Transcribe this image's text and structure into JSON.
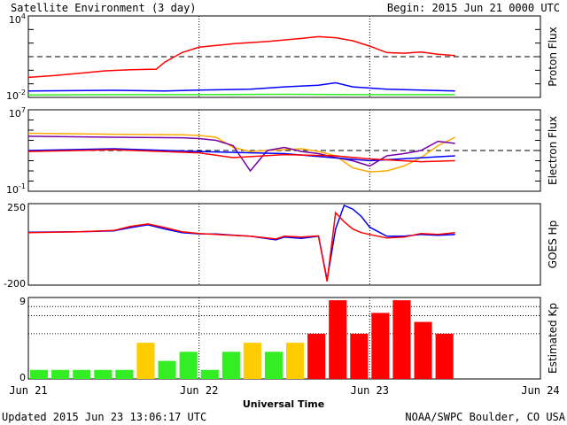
{
  "header": {
    "title": "Satellite Environment (3 day)",
    "begin": "Begin:  2015 Jun 21 0000 UTC"
  },
  "footer": {
    "updated": "Updated 2015 Jun 23 13:06:17 UTC",
    "credit": "NOAA/SWPC Boulder, CO USA"
  },
  "colors": {
    "red": "#ff0000",
    "blue": "#0000ff",
    "green": "#33ee22",
    "orange": "#ffaa00",
    "purple": "#7700aa",
    "yellow": "#ffcc00"
  },
  "chart_data": [
    {
      "id": "proton",
      "type": "line",
      "ylabel": "Proton Flux",
      "yscale": "log",
      "ylim": [
        0.01,
        10000
      ],
      "ytick_labels": [
        {
          "value": 10000,
          "base": "10",
          "exp": "4"
        },
        {
          "value": 0.01,
          "base": "10",
          "exp": "-2"
        }
      ],
      "threshold": 10,
      "series": [
        {
          "color": "red",
          "points": [
            [
              0,
              0.3
            ],
            [
              0.15,
              0.4
            ],
            [
              0.3,
              0.6
            ],
            [
              0.45,
              0.9
            ],
            [
              0.6,
              1.1
            ],
            [
              0.75,
              1.2
            ],
            [
              0.8,
              4
            ],
            [
              0.9,
              20
            ],
            [
              1.0,
              50
            ],
            [
              1.2,
              90
            ],
            [
              1.4,
              130
            ],
            [
              1.6,
              220
            ],
            [
              1.7,
              300
            ],
            [
              1.8,
              250
            ],
            [
              1.9,
              150
            ],
            [
              2.0,
              60
            ],
            [
              2.1,
              20
            ],
            [
              2.2,
              18
            ],
            [
              2.3,
              22
            ],
            [
              2.4,
              15
            ],
            [
              2.5,
              12
            ]
          ]
        },
        {
          "color": "blue",
          "points": [
            [
              0,
              0.03
            ],
            [
              0.5,
              0.033
            ],
            [
              0.8,
              0.03
            ],
            [
              1.0,
              0.035
            ],
            [
              1.3,
              0.04
            ],
            [
              1.5,
              0.06
            ],
            [
              1.7,
              0.08
            ],
            [
              1.8,
              0.12
            ],
            [
              1.9,
              0.06
            ],
            [
              2.1,
              0.04
            ],
            [
              2.5,
              0.03
            ]
          ]
        },
        {
          "color": "green",
          "points": [
            [
              0,
              0.015
            ],
            [
              0.5,
              0.016
            ],
            [
              1.0,
              0.016
            ],
            [
              1.5,
              0.017
            ],
            [
              2.0,
              0.016
            ],
            [
              2.5,
              0.016
            ]
          ]
        }
      ]
    },
    {
      "id": "electron",
      "type": "line",
      "ylabel": "Electron Flux",
      "yscale": "log",
      "ylim": [
        0.1,
        10000000
      ],
      "ytick_labels": [
        {
          "value": 10000000,
          "base": "10",
          "exp": "7"
        },
        {
          "value": 0.1,
          "base": "10",
          "exp": "-1"
        }
      ],
      "threshold": 1000,
      "series": [
        {
          "color": "orange",
          "points": [
            [
              0,
              50000
            ],
            [
              0.5,
              40000
            ],
            [
              0.9,
              35000
            ],
            [
              1.0,
              30000
            ],
            [
              1.1,
              20000
            ],
            [
              1.2,
              2000
            ],
            [
              1.3,
              800
            ],
            [
              1.4,
              1000
            ],
            [
              1.6,
              1500
            ],
            [
              1.7,
              800
            ],
            [
              1.8,
              300
            ],
            [
              1.9,
              20
            ],
            [
              2.0,
              8
            ],
            [
              2.1,
              10
            ],
            [
              2.2,
              30
            ],
            [
              2.3,
              200
            ],
            [
              2.4,
              3000
            ],
            [
              2.5,
              20000
            ]
          ]
        },
        {
          "color": "purple",
          "points": [
            [
              0,
              25000
            ],
            [
              0.5,
              20000
            ],
            [
              0.9,
              18000
            ],
            [
              1.0,
              15000
            ],
            [
              1.1,
              10000
            ],
            [
              1.2,
              3000
            ],
            [
              1.3,
              10
            ],
            [
              1.4,
              1000
            ],
            [
              1.5,
              2000
            ],
            [
              1.6,
              800
            ],
            [
              1.7,
              500
            ],
            [
              1.8,
              200
            ],
            [
              1.9,
              100
            ],
            [
              2.0,
              30
            ],
            [
              2.1,
              300
            ],
            [
              2.2,
              500
            ],
            [
              2.3,
              1000
            ],
            [
              2.4,
              8000
            ],
            [
              2.5,
              5000
            ]
          ]
        },
        {
          "color": "blue",
          "points": [
            [
              0,
              1000
            ],
            [
              0.5,
              1500
            ],
            [
              1.0,
              800
            ],
            [
              1.5,
              500
            ],
            [
              2.0,
              100
            ],
            [
              2.5,
              300
            ]
          ]
        },
        {
          "color": "red",
          "points": [
            [
              0,
              800
            ],
            [
              0.5,
              1200
            ],
            [
              1.0,
              600
            ],
            [
              1.2,
              200
            ],
            [
              1.5,
              400
            ],
            [
              1.8,
              300
            ],
            [
              2.0,
              150
            ],
            [
              2.3,
              80
            ],
            [
              2.5,
              100
            ]
          ]
        }
      ]
    },
    {
      "id": "hp",
      "type": "line",
      "ylabel": "GOES Hp",
      "ylim": [
        -200,
        250
      ],
      "ytick_labels": [
        {
          "value": 250,
          "text": "250"
        },
        {
          "value": -200,
          "text": "-200"
        }
      ],
      "series": [
        {
          "color": "blue",
          "points": [
            [
              0,
              92
            ],
            [
              0.3,
              95
            ],
            [
              0.5,
              100
            ],
            [
              0.6,
              118
            ],
            [
              0.7,
              133
            ],
            [
              0.8,
              110
            ],
            [
              0.9,
              90
            ],
            [
              1.0,
              83
            ],
            [
              1.1,
              82
            ],
            [
              1.3,
              70
            ],
            [
              1.45,
              50
            ],
            [
              1.5,
              65
            ],
            [
              1.6,
              58
            ],
            [
              1.7,
              70
            ],
            [
              1.75,
              -170
            ],
            [
              1.8,
              110
            ],
            [
              1.85,
              240
            ],
            [
              1.9,
              220
            ],
            [
              1.95,
              180
            ],
            [
              2.0,
              120
            ],
            [
              2.1,
              70
            ],
            [
              2.2,
              70
            ],
            [
              2.3,
              80
            ],
            [
              2.4,
              75
            ],
            [
              2.5,
              80
            ]
          ]
        },
        {
          "color": "red",
          "points": [
            [
              0,
              90
            ],
            [
              0.3,
              95
            ],
            [
              0.5,
              102
            ],
            [
              0.6,
              125
            ],
            [
              0.7,
              138
            ],
            [
              0.8,
              118
            ],
            [
              0.9,
              95
            ],
            [
              1.0,
              85
            ],
            [
              1.1,
              80
            ],
            [
              1.3,
              70
            ],
            [
              1.45,
              55
            ],
            [
              1.5,
              70
            ],
            [
              1.6,
              65
            ],
            [
              1.7,
              72
            ],
            [
              1.75,
              -180
            ],
            [
              1.8,
              200
            ],
            [
              1.85,
              150
            ],
            [
              1.9,
              110
            ],
            [
              1.95,
              90
            ],
            [
              2.0,
              80
            ],
            [
              2.1,
              60
            ],
            [
              2.2,
              65
            ],
            [
              2.3,
              85
            ],
            [
              2.4,
              80
            ],
            [
              2.5,
              90
            ]
          ]
        }
      ]
    },
    {
      "id": "kp",
      "type": "bar",
      "ylabel": "Estimated Kp",
      "ylim": [
        0,
        9
      ],
      "ytick_labels": [
        {
          "value": 9,
          "text": "9"
        },
        {
          "value": 0,
          "text": "0"
        }
      ],
      "gridlines": [
        5,
        7,
        8
      ],
      "values": [
        1,
        1,
        1,
        1,
        1,
        4,
        2,
        3,
        1,
        3,
        4,
        3,
        4,
        5,
        8.7,
        5,
        7.3,
        8.7,
        6.3,
        5
      ],
      "bar_colors": [
        "green",
        "green",
        "green",
        "green",
        "green",
        "yellow",
        "green",
        "green",
        "green",
        "green",
        "yellow",
        "green",
        "yellow",
        "red",
        "red",
        "red",
        "red",
        "red",
        "red",
        "red"
      ]
    }
  ],
  "xaxis": {
    "label": "Universal Time",
    "range": [
      0,
      3
    ],
    "ticks": [
      {
        "value": 0,
        "label": "Jun 21"
      },
      {
        "value": 1,
        "label": "Jun 22"
      },
      {
        "value": 2,
        "label": "Jun 23"
      },
      {
        "value": 3,
        "label": "Jun 24"
      }
    ]
  }
}
